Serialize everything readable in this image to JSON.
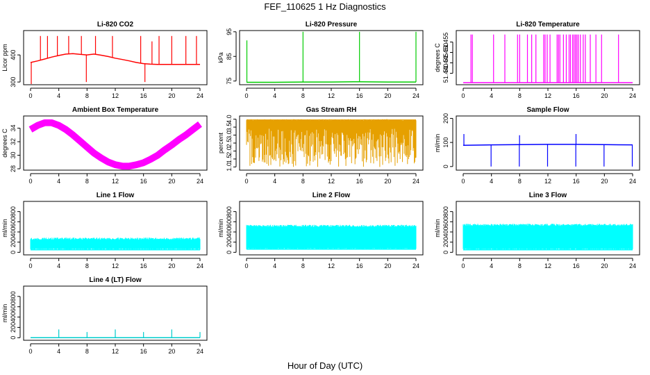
{
  "title": "FEF_110625  1 Hz Diagnostics",
  "xlabel": "Hour of Day (UTC)",
  "chart_data": [
    {
      "type": "line",
      "title": "Li-820 CO2",
      "ylabel": "Licor ppm",
      "color": "#ff0000",
      "xlim": [
        0,
        24
      ],
      "xticks": [
        0,
        4,
        8,
        12,
        16,
        20,
        24
      ],
      "ylim": [
        290,
        490
      ],
      "yticks": [
        300,
        400
      ],
      "series": [
        {
          "x": [
            0,
            1,
            2,
            3,
            4,
            5,
            6,
            7,
            8,
            9,
            10,
            11,
            12,
            13,
            14,
            15,
            16,
            17,
            18,
            19,
            20,
            21,
            22,
            23,
            24
          ],
          "y": [
            372,
            378,
            385,
            392,
            398,
            403,
            405,
            402,
            400,
            403,
            399,
            394,
            388,
            383,
            378,
            372,
            368,
            366,
            365,
            365,
            365,
            365,
            365,
            365,
            365
          ]
        }
      ],
      "spikes": [
        {
          "x": 0.1,
          "y": 292
        },
        {
          "x": 1.4,
          "y": 470
        },
        {
          "x": 2.4,
          "y": 470
        },
        {
          "x": 3.8,
          "y": 470
        },
        {
          "x": 5.4,
          "y": 470
        },
        {
          "x": 7.2,
          "y": 470
        },
        {
          "x": 7.9,
          "y": 300
        },
        {
          "x": 9.2,
          "y": 470
        },
        {
          "x": 11.6,
          "y": 470
        },
        {
          "x": 15.6,
          "y": 470
        },
        {
          "x": 16.2,
          "y": 300
        },
        {
          "x": 17.2,
          "y": 450
        },
        {
          "x": 18.2,
          "y": 470
        },
        {
          "x": 20.0,
          "y": 470
        },
        {
          "x": 22.0,
          "y": 470
        },
        {
          "x": 23.5,
          "y": 470
        }
      ]
    },
    {
      "type": "line",
      "title": "Li-820 Pressure",
      "ylabel": "kPa",
      "color": "#00cc00",
      "xlim": [
        0,
        24
      ],
      "xticks": [
        0,
        4,
        8,
        12,
        16,
        20,
        24
      ],
      "ylim": [
        73.5,
        95.5
      ],
      "yticks": [
        75,
        85,
        95
      ],
      "series": [
        {
          "x": [
            0,
            4,
            8,
            12,
            16,
            20,
            24
          ],
          "y": [
            74.5,
            74.5,
            74.6,
            74.6,
            74.7,
            74.6,
            74.6
          ]
        }
      ],
      "spikes": [
        {
          "x": 0.05,
          "y": 91.5
        },
        {
          "x": 8.0,
          "y": 95
        },
        {
          "x": 16.0,
          "y": 95
        },
        {
          "x": 24.0,
          "y": 95
        }
      ]
    },
    {
      "type": "line",
      "title": "Li-820 Temperature",
      "ylabel": "degrees C",
      "color": "#ff00ff",
      "xlim": [
        0,
        24
      ],
      "xticks": [
        0,
        4,
        8,
        12,
        16,
        20,
        24
      ],
      "ylim": [
        51.4345,
        51.4605
      ],
      "yticks": [
        51.44,
        51.445,
        51.45,
        51.455
      ],
      "series": [
        {
          "x": [
            0,
            24
          ],
          "y": [
            51.4355,
            51.4355
          ]
        }
      ],
      "spikes": [
        {
          "x": 1.1,
          "y": 51.4586
        },
        {
          "x": 1.3,
          "y": 51.4586
        },
        {
          "x": 4.3,
          "y": 51.4586
        },
        {
          "x": 5.9,
          "y": 51.4586
        },
        {
          "x": 7.7,
          "y": 51.4586
        },
        {
          "x": 8.0,
          "y": 51.4586
        },
        {
          "x": 9.1,
          "y": 51.4586
        },
        {
          "x": 9.7,
          "y": 51.4586
        },
        {
          "x": 10.3,
          "y": 51.4586
        },
        {
          "x": 11.4,
          "y": 51.4586
        },
        {
          "x": 11.6,
          "y": 51.4586
        },
        {
          "x": 11.9,
          "y": 51.4586
        },
        {
          "x": 12.3,
          "y": 51.4586
        },
        {
          "x": 13.3,
          "y": 51.4586
        },
        {
          "x": 13.5,
          "y": 51.4586
        },
        {
          "x": 13.7,
          "y": 51.4586
        },
        {
          "x": 14.2,
          "y": 51.4586
        },
        {
          "x": 14.6,
          "y": 51.4586
        },
        {
          "x": 15.0,
          "y": 51.4586
        },
        {
          "x": 15.2,
          "y": 51.4586
        },
        {
          "x": 15.5,
          "y": 51.4586
        },
        {
          "x": 15.7,
          "y": 51.4586
        },
        {
          "x": 15.9,
          "y": 51.4586
        },
        {
          "x": 16.1,
          "y": 51.4586
        },
        {
          "x": 16.3,
          "y": 51.4586
        },
        {
          "x": 16.6,
          "y": 51.4586
        },
        {
          "x": 17.0,
          "y": 51.4586
        },
        {
          "x": 17.3,
          "y": 51.4586
        },
        {
          "x": 18.0,
          "y": 51.4586
        },
        {
          "x": 18.8,
          "y": 51.4586
        },
        {
          "x": 19.6,
          "y": 51.4586
        },
        {
          "x": 22.0,
          "y": 51.4586
        }
      ]
    },
    {
      "type": "line",
      "title": "Ambient Box Temperature",
      "ylabel": "degrees C",
      "color": "#ff00ff",
      "xlim": [
        0,
        24
      ],
      "xticks": [
        0,
        4,
        8,
        12,
        16,
        20,
        24
      ],
      "ylim": [
        27.8,
        35.8
      ],
      "yticks": [
        28,
        30,
        32,
        34
      ],
      "series": [
        {
          "x": [
            0,
            1,
            2,
            3,
            4,
            5,
            6,
            7,
            8,
            9,
            10,
            11,
            12,
            13,
            14,
            15,
            16,
            17,
            18,
            19,
            20,
            21,
            22,
            23,
            24
          ],
          "y": [
            33.8,
            34.4,
            34.8,
            34.8,
            34.4,
            33.8,
            33.0,
            32.1,
            31.2,
            30.3,
            29.6,
            29.0,
            28.6,
            28.4,
            28.4,
            28.6,
            28.9,
            29.4,
            30.0,
            30.8,
            31.5,
            32.3,
            33.0,
            33.8,
            34.6
          ]
        }
      ],
      "band": 0.5
    },
    {
      "type": "line",
      "title": "Gas Stream RH",
      "ylabel": "percent",
      "color": "#e6a000",
      "xlim": [
        0,
        24
      ],
      "xticks": [
        0,
        4,
        8,
        12,
        16,
        20,
        24
      ],
      "ylim": [
        0.8,
        4.2
      ],
      "yticks": [
        1.0,
        1.5,
        2.0,
        2.5,
        3.0,
        3.5,
        4.0
      ],
      "series": [
        {
          "x": [
            0,
            24
          ],
          "y": [
            3.95,
            3.95
          ]
        }
      ],
      "band_low": 1.0
    },
    {
      "type": "line",
      "title": "Sample Flow",
      "ylabel": "ml/min",
      "color": "#0000ff",
      "xlim": [
        0,
        24
      ],
      "xticks": [
        0,
        4,
        8,
        12,
        16,
        20,
        24
      ],
      "ylim": [
        -15,
        210
      ],
      "yticks": [
        0,
        100,
        200
      ],
      "series": [
        {
          "x": [
            0,
            4,
            8,
            12,
            16,
            20,
            24
          ],
          "y": [
            88,
            90,
            91,
            92,
            92,
            91,
            90
          ]
        }
      ],
      "spikes": [
        {
          "x": 0.1,
          "y": 135
        },
        {
          "x": 3.95,
          "y": 0
        },
        {
          "x": 7.95,
          "y": 0
        },
        {
          "x": 7.98,
          "y": 130
        },
        {
          "x": 11.95,
          "y": 0
        },
        {
          "x": 15.95,
          "y": 0
        },
        {
          "x": 15.98,
          "y": 135
        },
        {
          "x": 19.95,
          "y": 0
        },
        {
          "x": 23.95,
          "y": 0
        }
      ]
    },
    {
      "type": "line",
      "title": "Line 1 Flow",
      "ylabel": "ml/min",
      "color": "#00ffff",
      "xlim": [
        0,
        24
      ],
      "xticks": [
        0,
        4,
        8,
        12,
        16,
        20,
        24
      ],
      "ylim": [
        -50,
        1000
      ],
      "yticks": [
        0,
        200,
        400,
        600,
        800
      ],
      "series": [
        {
          "x": [
            0,
            4,
            8,
            12,
            16,
            20,
            24
          ],
          "y": [
            50,
            50,
            50,
            50,
            50,
            50,
            50
          ]
        }
      ],
      "band_high": 290
    },
    {
      "type": "line",
      "title": "Line 2 Flow",
      "ylabel": "ml/min",
      "color": "#00ffff",
      "xlim": [
        0,
        24
      ],
      "xticks": [
        0,
        4,
        8,
        12,
        16,
        20,
        24
      ],
      "ylim": [
        -50,
        1000
      ],
      "yticks": [
        0,
        200,
        400,
        600,
        800
      ],
      "series": [
        {
          "x": [
            0,
            4,
            8,
            12,
            16,
            20,
            24
          ],
          "y": [
            60,
            60,
            60,
            60,
            60,
            60,
            60
          ]
        }
      ],
      "band_high": 540
    },
    {
      "type": "line",
      "title": "Line 3 Flow",
      "ylabel": "ml/min",
      "color": "#00ffff",
      "xlim": [
        0,
        24
      ],
      "xticks": [
        0,
        4,
        8,
        12,
        16,
        20,
        24
      ],
      "ylim": [
        -50,
        1000
      ],
      "yticks": [
        0,
        200,
        400,
        600,
        800
      ],
      "series": [
        {
          "x": [
            0,
            4,
            8,
            12,
            16,
            20,
            24
          ],
          "y": [
            50,
            50,
            50,
            50,
            50,
            50,
            50
          ]
        }
      ],
      "band_high": 560
    },
    {
      "type": "line",
      "title": "Line 4 (LT) Flow",
      "ylabel": "ml/min",
      "color": "#00cccc",
      "xlim": [
        0,
        24
      ],
      "xticks": [
        0,
        4,
        8,
        12,
        16,
        20,
        24
      ],
      "ylim": [
        -50,
        1000
      ],
      "yticks": [
        0,
        200,
        400,
        600,
        800
      ],
      "series": [
        {
          "x": [
            0,
            24
          ],
          "y": [
            0,
            0
          ]
        }
      ],
      "spikes": [
        {
          "x": 4.0,
          "y": 160
        },
        {
          "x": 8.0,
          "y": 110
        },
        {
          "x": 12.0,
          "y": 160
        },
        {
          "x": 16.0,
          "y": 110
        },
        {
          "x": 20.0,
          "y": 160
        },
        {
          "x": 24.0,
          "y": 110
        }
      ]
    }
  ]
}
